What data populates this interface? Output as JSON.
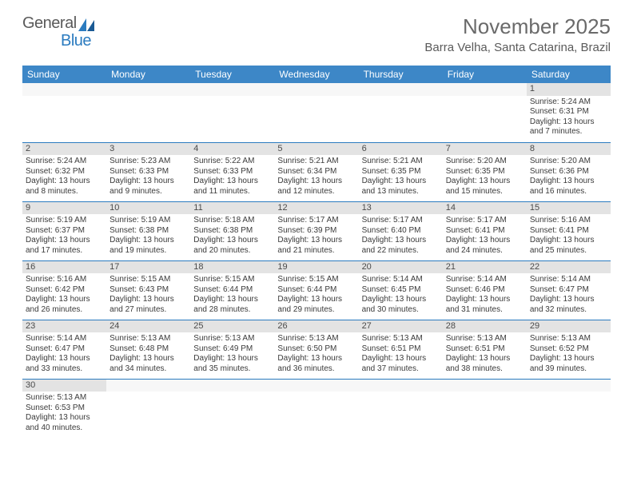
{
  "logo": {
    "general": "General",
    "blue": "Blue"
  },
  "header": {
    "month_title": "November 2025",
    "location": "Barra Velha, Santa Catarina, Brazil"
  },
  "colors": {
    "header_bg": "#3d87c7",
    "header_text": "#ffffff",
    "daynum_bg": "#e3e3e3",
    "border": "#2b7bbf",
    "text": "#3a3a3a",
    "logo_general": "#5a5a5a",
    "logo_blue": "#2b7bbf",
    "title": "#6a6a6a"
  },
  "calendar": {
    "day_headers": [
      "Sunday",
      "Monday",
      "Tuesday",
      "Wednesday",
      "Thursday",
      "Friday",
      "Saturday"
    ],
    "weeks": [
      [
        null,
        null,
        null,
        null,
        null,
        null,
        {
          "n": "1",
          "sunrise": "Sunrise: 5:24 AM",
          "sunset": "Sunset: 6:31 PM",
          "daylight": "Daylight: 13 hours and 7 minutes."
        }
      ],
      [
        {
          "n": "2",
          "sunrise": "Sunrise: 5:24 AM",
          "sunset": "Sunset: 6:32 PM",
          "daylight": "Daylight: 13 hours and 8 minutes."
        },
        {
          "n": "3",
          "sunrise": "Sunrise: 5:23 AM",
          "sunset": "Sunset: 6:33 PM",
          "daylight": "Daylight: 13 hours and 9 minutes."
        },
        {
          "n": "4",
          "sunrise": "Sunrise: 5:22 AM",
          "sunset": "Sunset: 6:33 PM",
          "daylight": "Daylight: 13 hours and 11 minutes."
        },
        {
          "n": "5",
          "sunrise": "Sunrise: 5:21 AM",
          "sunset": "Sunset: 6:34 PM",
          "daylight": "Daylight: 13 hours and 12 minutes."
        },
        {
          "n": "6",
          "sunrise": "Sunrise: 5:21 AM",
          "sunset": "Sunset: 6:35 PM",
          "daylight": "Daylight: 13 hours and 13 minutes."
        },
        {
          "n": "7",
          "sunrise": "Sunrise: 5:20 AM",
          "sunset": "Sunset: 6:35 PM",
          "daylight": "Daylight: 13 hours and 15 minutes."
        },
        {
          "n": "8",
          "sunrise": "Sunrise: 5:20 AM",
          "sunset": "Sunset: 6:36 PM",
          "daylight": "Daylight: 13 hours and 16 minutes."
        }
      ],
      [
        {
          "n": "9",
          "sunrise": "Sunrise: 5:19 AM",
          "sunset": "Sunset: 6:37 PM",
          "daylight": "Daylight: 13 hours and 17 minutes."
        },
        {
          "n": "10",
          "sunrise": "Sunrise: 5:19 AM",
          "sunset": "Sunset: 6:38 PM",
          "daylight": "Daylight: 13 hours and 19 minutes."
        },
        {
          "n": "11",
          "sunrise": "Sunrise: 5:18 AM",
          "sunset": "Sunset: 6:38 PM",
          "daylight": "Daylight: 13 hours and 20 minutes."
        },
        {
          "n": "12",
          "sunrise": "Sunrise: 5:17 AM",
          "sunset": "Sunset: 6:39 PM",
          "daylight": "Daylight: 13 hours and 21 minutes."
        },
        {
          "n": "13",
          "sunrise": "Sunrise: 5:17 AM",
          "sunset": "Sunset: 6:40 PM",
          "daylight": "Daylight: 13 hours and 22 minutes."
        },
        {
          "n": "14",
          "sunrise": "Sunrise: 5:17 AM",
          "sunset": "Sunset: 6:41 PM",
          "daylight": "Daylight: 13 hours and 24 minutes."
        },
        {
          "n": "15",
          "sunrise": "Sunrise: 5:16 AM",
          "sunset": "Sunset: 6:41 PM",
          "daylight": "Daylight: 13 hours and 25 minutes."
        }
      ],
      [
        {
          "n": "16",
          "sunrise": "Sunrise: 5:16 AM",
          "sunset": "Sunset: 6:42 PM",
          "daylight": "Daylight: 13 hours and 26 minutes."
        },
        {
          "n": "17",
          "sunrise": "Sunrise: 5:15 AM",
          "sunset": "Sunset: 6:43 PM",
          "daylight": "Daylight: 13 hours and 27 minutes."
        },
        {
          "n": "18",
          "sunrise": "Sunrise: 5:15 AM",
          "sunset": "Sunset: 6:44 PM",
          "daylight": "Daylight: 13 hours and 28 minutes."
        },
        {
          "n": "19",
          "sunrise": "Sunrise: 5:15 AM",
          "sunset": "Sunset: 6:44 PM",
          "daylight": "Daylight: 13 hours and 29 minutes."
        },
        {
          "n": "20",
          "sunrise": "Sunrise: 5:14 AM",
          "sunset": "Sunset: 6:45 PM",
          "daylight": "Daylight: 13 hours and 30 minutes."
        },
        {
          "n": "21",
          "sunrise": "Sunrise: 5:14 AM",
          "sunset": "Sunset: 6:46 PM",
          "daylight": "Daylight: 13 hours and 31 minutes."
        },
        {
          "n": "22",
          "sunrise": "Sunrise: 5:14 AM",
          "sunset": "Sunset: 6:47 PM",
          "daylight": "Daylight: 13 hours and 32 minutes."
        }
      ],
      [
        {
          "n": "23",
          "sunrise": "Sunrise: 5:14 AM",
          "sunset": "Sunset: 6:47 PM",
          "daylight": "Daylight: 13 hours and 33 minutes."
        },
        {
          "n": "24",
          "sunrise": "Sunrise: 5:13 AM",
          "sunset": "Sunset: 6:48 PM",
          "daylight": "Daylight: 13 hours and 34 minutes."
        },
        {
          "n": "25",
          "sunrise": "Sunrise: 5:13 AM",
          "sunset": "Sunset: 6:49 PM",
          "daylight": "Daylight: 13 hours and 35 minutes."
        },
        {
          "n": "26",
          "sunrise": "Sunrise: 5:13 AM",
          "sunset": "Sunset: 6:50 PM",
          "daylight": "Daylight: 13 hours and 36 minutes."
        },
        {
          "n": "27",
          "sunrise": "Sunrise: 5:13 AM",
          "sunset": "Sunset: 6:51 PM",
          "daylight": "Daylight: 13 hours and 37 minutes."
        },
        {
          "n": "28",
          "sunrise": "Sunrise: 5:13 AM",
          "sunset": "Sunset: 6:51 PM",
          "daylight": "Daylight: 13 hours and 38 minutes."
        },
        {
          "n": "29",
          "sunrise": "Sunrise: 5:13 AM",
          "sunset": "Sunset: 6:52 PM",
          "daylight": "Daylight: 13 hours and 39 minutes."
        }
      ],
      [
        {
          "n": "30",
          "sunrise": "Sunrise: 5:13 AM",
          "sunset": "Sunset: 6:53 PM",
          "daylight": "Daylight: 13 hours and 40 minutes."
        },
        null,
        null,
        null,
        null,
        null,
        null
      ]
    ]
  }
}
